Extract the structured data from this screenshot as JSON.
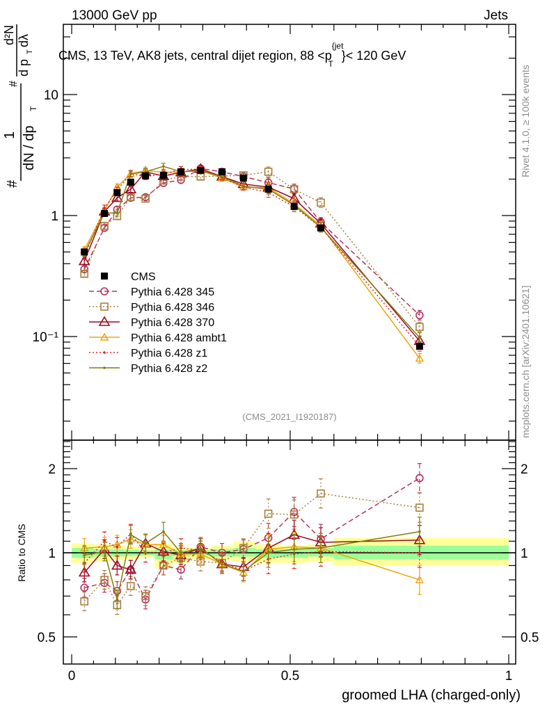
{
  "header": {
    "left": "13000 GeV pp",
    "right": "Jets"
  },
  "side_labels": {
    "rivet": "Rivet 4.1.0, ≥ 100k events",
    "mcplots": "mcplots.cern.ch [arXiv:2401.10621]"
  },
  "chart_data": [
    {
      "type": "line",
      "panel": "main",
      "title": "CMS, 13 TeV, AK8 jets, central dijet region, 88 <p_T^{jet}< 120 GeV",
      "title_parts": {
        "prefix": "CMS, 13 TeV, AK8 jets, central dijet region, 88 <p",
        "sup": "{jet",
        "sub": "T",
        "suffix": "}< 120 GeV"
      },
      "ylabel": "1/dN/dp_T  d²N/dp_T dλ",
      "ylabel_parts": {
        "frac1_num": "1",
        "frac1_den": "dN / dp",
        "frac2_num": "d²N",
        "frac2_den": "d p",
        "lambda": "dλ",
        "sub": "T",
        "hash": "#"
      },
      "yscale": "log",
      "ylim": [
        0.014,
        38
      ],
      "xlim": [
        -0.02,
        1.02
      ],
      "yticks": [
        {
          "v": 0.1,
          "label": "10⁻¹"
        },
        {
          "v": 1,
          "label": "1"
        },
        {
          "v": 10,
          "label": "10"
        }
      ],
      "watermark": "(CMS_2021_I1920187)",
      "legend_position": "center-left",
      "x": [
        0.029,
        0.075,
        0.104,
        0.135,
        0.169,
        0.21,
        0.25,
        0.295,
        0.344,
        0.393,
        0.45,
        0.509,
        0.57,
        0.796
      ],
      "series": [
        {
          "name": "CMS",
          "color": "#000000",
          "marker": "square-filled",
          "line": "none",
          "values": [
            0.5,
            1.04,
            1.55,
            1.89,
            2.13,
            2.15,
            2.3,
            2.36,
            2.3,
            2.04,
            1.65,
            1.19,
            0.79,
            0.083
          ]
        },
        {
          "name": "Pythia 6.428 345",
          "color": "#b5325a",
          "marker": "circle-open",
          "line": "dashed",
          "values": [
            0.36,
            0.79,
            1.12,
            1.4,
            1.42,
            1.86,
            1.97,
            2.45,
            2.3,
            2.1,
            1.87,
            1.66,
            0.88,
            0.15
          ]
        },
        {
          "name": "Pythia 6.428 346",
          "color": "#a8803e",
          "marker": "square-open",
          "line": "dotted",
          "values": [
            0.33,
            0.82,
            0.99,
            1.42,
            1.38,
            1.95,
            2.1,
            2.1,
            2.12,
            2.15,
            2.3,
            1.65,
            1.28,
            0.12
          ]
        },
        {
          "name": "Pythia 6.428 370",
          "color": "#9b0a23",
          "marker": "triangle-open",
          "line": "solid",
          "values": [
            0.42,
            1.08,
            1.4,
            1.65,
            2.3,
            2.12,
            2.28,
            2.43,
            2.1,
            1.82,
            1.72,
            1.38,
            0.86,
            0.092
          ]
        },
        {
          "name": "Pythia 6.428 ambt1",
          "color": "#f0a30a",
          "marker": "triangle-open-small",
          "line": "solid",
          "values": [
            0.52,
            1.1,
            1.72,
            2.22,
            2.35,
            2.28,
            2.3,
            2.35,
            2.05,
            1.72,
            1.7,
            1.25,
            0.82,
            0.066
          ]
        },
        {
          "name": "Pythia 6.428 z1",
          "color": "#e8231e",
          "marker": "dot",
          "line": "dotted",
          "values": [
            0.46,
            1.15,
            1.62,
            2.22,
            2.1,
            2.2,
            2.4,
            2.42,
            2.05,
            1.72,
            1.55,
            1.18,
            0.8,
            0.083
          ]
        },
        {
          "name": "Pythia 6.428 z2",
          "color": "#7f7f10",
          "marker": "dot",
          "line": "solid",
          "values": [
            0.49,
            1.05,
            1.05,
            2.2,
            2.3,
            2.55,
            2.3,
            2.35,
            2.1,
            1.75,
            1.65,
            1.22,
            0.8,
            0.098
          ]
        }
      ]
    },
    {
      "type": "line",
      "panel": "ratio",
      "ylabel": "Ratio to CMS",
      "xlabel": "groomed LHA (charged-only)",
      "yscale": "log",
      "ylim": [
        0.4,
        2.53
      ],
      "xlim": [
        -0.02,
        1.02
      ],
      "yticks": [
        {
          "v": 0.5,
          "label": "0.5"
        },
        {
          "v": 1,
          "label": "1"
        },
        {
          "v": 2,
          "label": "2"
        }
      ],
      "xticks": [
        {
          "v": 0,
          "label": "0"
        },
        {
          "v": 0.5,
          "label": "0.5"
        },
        {
          "v": 1,
          "label": "1"
        }
      ],
      "band_bins": [
        {
          "lo": 0.0,
          "hi": 0.05,
          "yellow": [
            0.92,
            1.08
          ],
          "green": [
            0.96,
            1.04
          ]
        },
        {
          "lo": 0.05,
          "hi": 0.09,
          "yellow": [
            0.93,
            1.07
          ],
          "green": [
            0.97,
            1.03
          ]
        },
        {
          "lo": 0.09,
          "hi": 0.12,
          "yellow": [
            0.94,
            1.06
          ],
          "green": [
            0.97,
            1.03
          ]
        },
        {
          "lo": 0.12,
          "hi": 0.155,
          "yellow": [
            0.95,
            1.05
          ],
          "green": [
            0.975,
            1.025
          ]
        },
        {
          "lo": 0.155,
          "hi": 0.19,
          "yellow": [
            0.96,
            1.04
          ],
          "green": [
            0.98,
            1.02
          ]
        },
        {
          "lo": 0.19,
          "hi": 0.23,
          "yellow": [
            0.88,
            1.08
          ],
          "green": [
            0.95,
            1.03
          ]
        },
        {
          "lo": 0.23,
          "hi": 0.27,
          "yellow": [
            0.92,
            1.05
          ],
          "green": [
            0.97,
            1.02
          ]
        },
        {
          "lo": 0.27,
          "hi": 0.32,
          "yellow": [
            0.95,
            1.04
          ],
          "green": [
            0.98,
            1.02
          ]
        },
        {
          "lo": 0.32,
          "hi": 0.37,
          "yellow": [
            0.94,
            1.06
          ],
          "green": [
            0.97,
            1.03
          ]
        },
        {
          "lo": 0.37,
          "hi": 0.42,
          "yellow": [
            0.93,
            1.1
          ],
          "green": [
            0.97,
            1.04
          ]
        },
        {
          "lo": 0.42,
          "hi": 0.48,
          "yellow": [
            0.92,
            1.07
          ],
          "green": [
            0.96,
            1.03
          ]
        },
        {
          "lo": 0.48,
          "hi": 0.54,
          "yellow": [
            0.92,
            1.06
          ],
          "green": [
            0.96,
            1.03
          ]
        },
        {
          "lo": 0.54,
          "hi": 0.6,
          "yellow": [
            0.93,
            1.07
          ],
          "green": [
            0.97,
            1.04
          ]
        },
        {
          "lo": 0.6,
          "hi": 1.0,
          "yellow": [
            0.9,
            1.13
          ],
          "green": [
            0.95,
            1.06
          ]
        }
      ],
      "x": [
        0.029,
        0.075,
        0.104,
        0.135,
        0.169,
        0.21,
        0.25,
        0.295,
        0.344,
        0.393,
        0.45,
        0.509,
        0.57,
        0.796
      ],
      "series": [
        {
          "name": "Pythia 6.428 345",
          "color": "#b5325a",
          "marker": "circle-open",
          "line": "dashed",
          "values": [
            0.75,
            0.78,
            0.73,
            0.87,
            0.68,
            0.9,
            0.87,
            1.05,
            1.0,
            1.03,
            1.13,
            1.4,
            1.12,
            1.85
          ]
        },
        {
          "name": "Pythia 6.428 346",
          "color": "#a8803e",
          "marker": "square-open",
          "line": "dotted",
          "values": [
            0.67,
            0.8,
            0.65,
            0.76,
            0.7,
            0.9,
            0.96,
            0.93,
            0.92,
            1.04,
            1.38,
            1.37,
            1.63,
            1.45
          ]
        },
        {
          "name": "Pythia 6.428 370",
          "color": "#9b0a23",
          "marker": "triangle-open",
          "line": "solid",
          "values": [
            0.85,
            1.03,
            0.9,
            0.87,
            1.08,
            1.01,
            0.98,
            1.04,
            0.91,
            0.89,
            1.04,
            1.16,
            1.09,
            1.11
          ]
        },
        {
          "name": "Pythia 6.428 ambt1",
          "color": "#f0a30a",
          "marker": "triangle-open-small",
          "line": "solid",
          "values": [
            1.04,
            1.05,
            1.07,
            1.12,
            1.07,
            1.07,
            0.99,
            0.99,
            0.91,
            0.85,
            1.03,
            1.05,
            1.04,
            0.8
          ]
        },
        {
          "name": "Pythia 6.428 z1",
          "color": "#e8231e",
          "marker": "dot",
          "line": "dotted",
          "values": [
            0.92,
            1.1,
            1.05,
            1.17,
            1.0,
            1.0,
            1.04,
            1.02,
            0.93,
            0.86,
            0.95,
            0.99,
            1.01,
            1.0
          ]
        },
        {
          "name": "Pythia 6.428 z2",
          "color": "#7f7f10",
          "marker": "dot",
          "line": "solid",
          "values": [
            0.98,
            1.01,
            0.68,
            1.16,
            1.08,
            1.19,
            1.0,
            1.04,
            0.91,
            0.86,
            1.0,
            1.03,
            1.04,
            1.19
          ]
        }
      ]
    }
  ]
}
